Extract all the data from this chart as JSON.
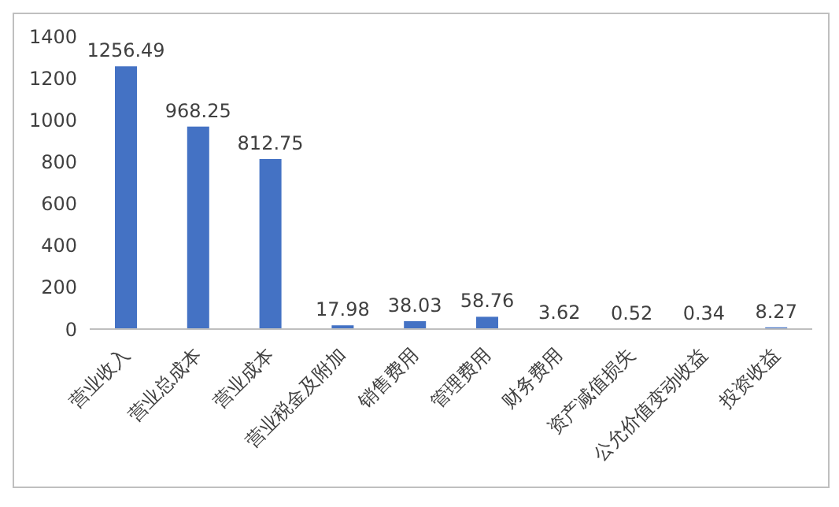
{
  "chart_data": {
    "type": "bar",
    "categories": [
      "营业收入",
      "营业总成本",
      "营业成本",
      "营业税金及附加",
      "销售费用",
      "管理费用",
      "财务费用",
      "资产减值损失",
      "公允价值变动收益",
      "投资收益"
    ],
    "values": [
      1256.49,
      968.25,
      812.75,
      17.98,
      38.03,
      58.76,
      3.62,
      0.52,
      0.34,
      8.27
    ],
    "color": "#4472c4",
    "ylim": [
      0,
      1400
    ],
    "yticks": [
      0,
      200,
      400,
      600,
      800,
      1000,
      1200,
      1400
    ],
    "data_labels": true
  }
}
